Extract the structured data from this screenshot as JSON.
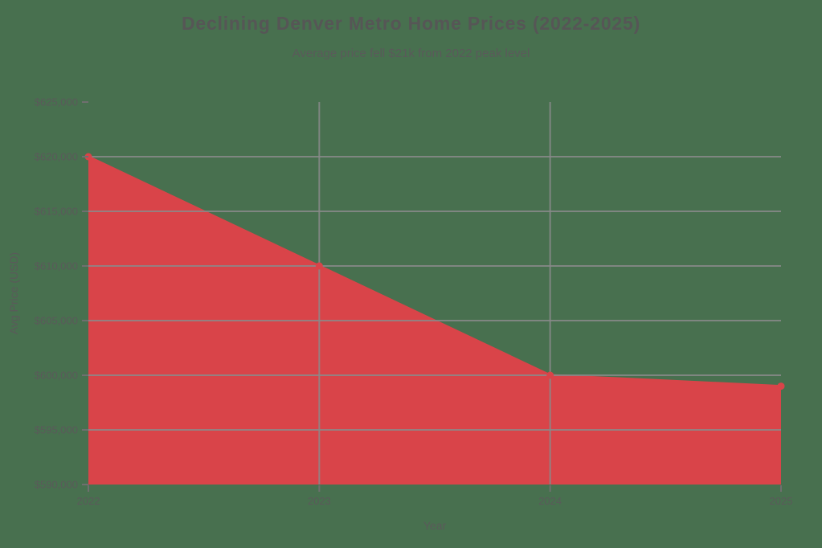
{
  "chart_data": {
    "type": "area",
    "title": "Declining Denver Metro Home Prices (2022-2025)",
    "subtitle": "Average price fell $21k from 2022 peak level",
    "xlabel": "Year",
    "ylabel": "Avg Price (USD)",
    "x": [
      "2022",
      "2023",
      "2024",
      "2025"
    ],
    "series": [
      {
        "name": "Average home price",
        "values": [
          620000,
          610000,
          600000,
          599000
        ]
      }
    ],
    "ylim": [
      590000,
      625000
    ],
    "ytick_step": 5000,
    "ytick_labels": [
      "$590,000",
      "$595,000",
      "$600,000",
      "$605,000",
      "$610,000",
      "$615,000",
      "$620,000",
      "$625,000"
    ],
    "xtick_labels": [
      "2022",
      "2023",
      "2024",
      "2025"
    ],
    "grid": {
      "horizontal_at": [
        595000,
        600000,
        605000,
        610000,
        615000,
        620000
      ],
      "vertical_at": [
        "2023",
        "2024"
      ]
    },
    "legend": false,
    "colors": {
      "background": "#48704F",
      "area": "#D94449",
      "marker": "#D94449",
      "grid": "#8A8A8A",
      "tick": "#6F6F6F",
      "text": "#5A5A5A",
      "title_text": "#565656"
    }
  }
}
